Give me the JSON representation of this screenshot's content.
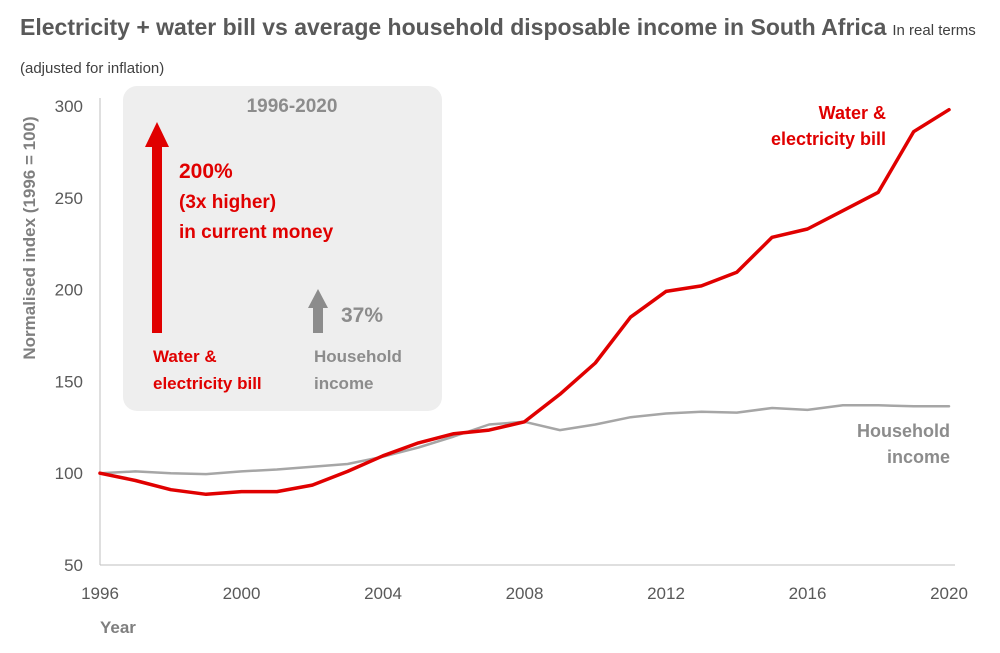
{
  "title": "Electricity + water bill vs average household disposable income in South Africa",
  "subtitle": "In real terms (adjusted for inflation)",
  "colors": {
    "bill": "#e00000",
    "income": "#a6a6a6",
    "box": "#eeeeee",
    "axis": "#bfbfbf"
  },
  "annotation": {
    "period": "1996-2020",
    "bill_change_line1": "200%",
    "bill_change_line2": "(3x higher)",
    "bill_change_line3": "in current money",
    "bill_label_line1": "Water &",
    "bill_label_line2": "electricity bill",
    "income_change": "37%",
    "income_label_line1": "Household",
    "income_label_line2": "income"
  },
  "chart_data": {
    "type": "line",
    "title": "Electricity + water bill vs average household disposable income in South Africa",
    "subtitle": "In real terms (adjusted for inflation)",
    "xlabel": "Year",
    "ylabel": "Normalised index (1996 = 100)",
    "xlim": [
      1996,
      2020
    ],
    "ylim": [
      50,
      300
    ],
    "xticks": [
      1996,
      2000,
      2004,
      2008,
      2012,
      2016,
      2020
    ],
    "yticks": [
      50,
      100,
      150,
      200,
      250,
      300
    ],
    "x": [
      1996,
      1997,
      1998,
      1999,
      2000,
      2001,
      2002,
      2003,
      2004,
      2005,
      2006,
      2007,
      2008,
      2009,
      2010,
      2011,
      2012,
      2013,
      2014,
      2015,
      2016,
      2017,
      2018,
      2019,
      2020
    ],
    "series": [
      {
        "name": "Water & electricity bill",
        "label_lines": [
          "Water &",
          "electricity bill"
        ],
        "color": "#e00000",
        "values": [
          100,
          96,
          91,
          88.5,
          90,
          90,
          93.5,
          101,
          109.5,
          116.5,
          121.5,
          123.5,
          128,
          143,
          160,
          185,
          199,
          202,
          209.5,
          228.5,
          233,
          243,
          253,
          286,
          298
        ]
      },
      {
        "name": "Household income",
        "label_lines": [
          "Household",
          "income"
        ],
        "color": "#a6a6a6",
        "values": [
          100,
          101,
          100,
          99.5,
          101,
          102,
          103.5,
          105,
          109,
          114,
          120,
          126.5,
          128,
          123.5,
          126.5,
          130.5,
          132.5,
          133.5,
          133,
          135.5,
          134.5,
          137,
          137,
          136.5,
          136.5
        ]
      }
    ],
    "grid": false,
    "legend": "direct labels at line ends"
  }
}
